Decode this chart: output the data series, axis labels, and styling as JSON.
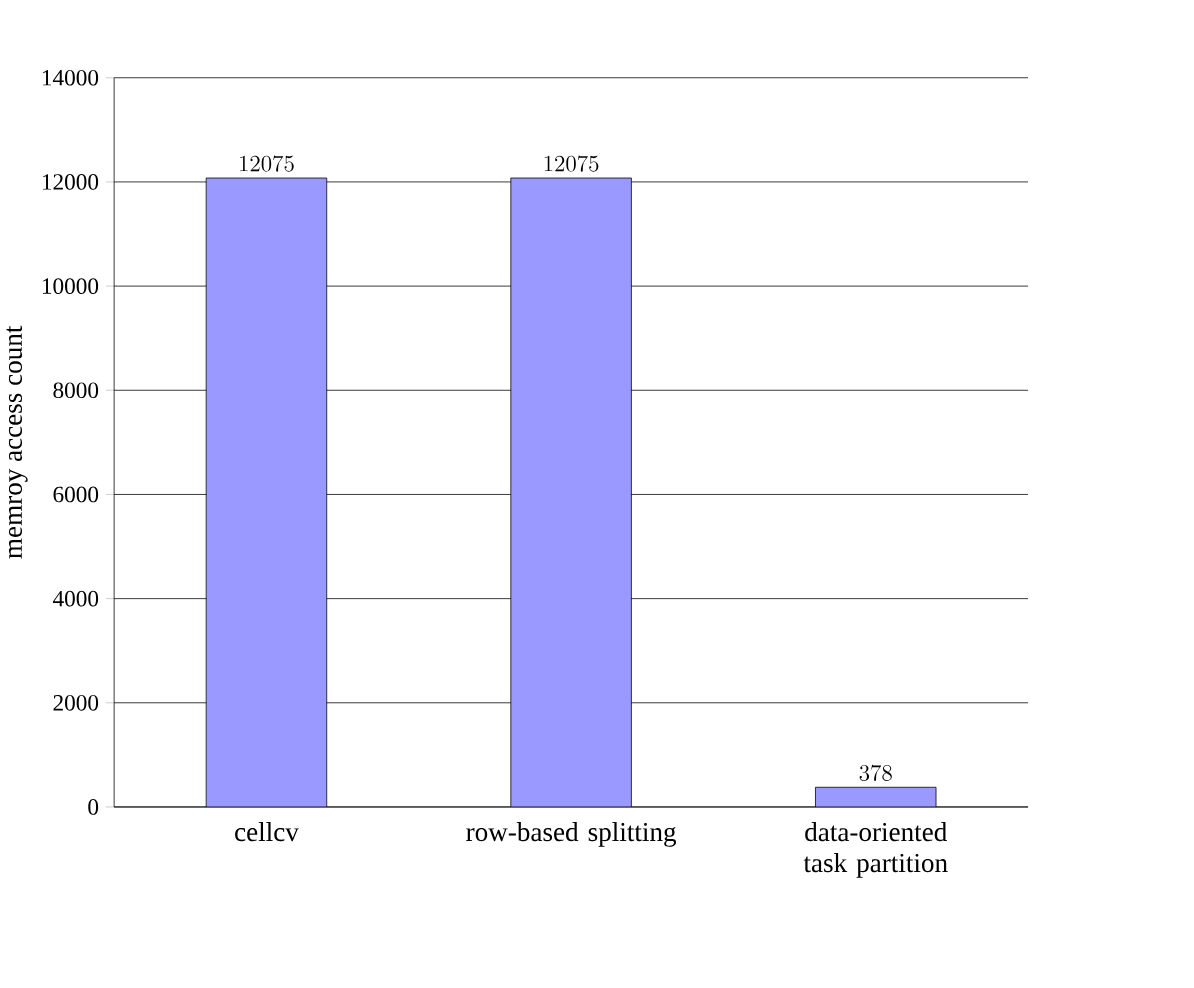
{
  "chart_data": {
    "type": "bar",
    "categories": [
      "cellcv",
      "row-based splitting",
      "data-oriented task partition"
    ],
    "values": [
      12075,
      12075,
      378
    ],
    "color": "#9999ff",
    "ylabel": "memroy access count",
    "ylim": [
      0,
      14000
    ],
    "yticks": [
      0,
      2000,
      4000,
      6000,
      8000,
      10000,
      12000,
      14000
    ],
    "grid": "y",
    "data_labels": true
  }
}
